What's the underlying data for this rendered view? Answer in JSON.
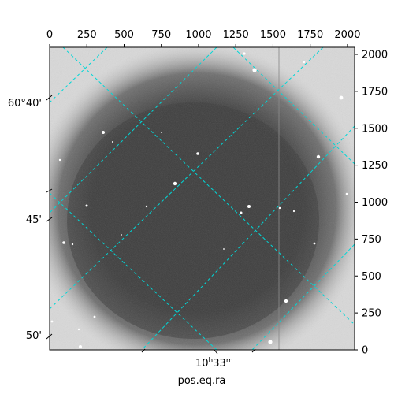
{
  "image_panel": {
    "x_axis_top": {
      "range": [
        0,
        2048
      ],
      "ticks": [
        0,
        250,
        500,
        750,
        1000,
        1250,
        1500,
        1750,
        2000
      ],
      "tick_labels": [
        "0",
        "250",
        "500",
        "750",
        "1000",
        "1250",
        "1500",
        "1750",
        "2000"
      ]
    },
    "y_axis_right": {
      "range": [
        0,
        2048
      ],
      "ticks": [
        0,
        250,
        500,
        750,
        1000,
        1250,
        1500,
        1750,
        2000
      ],
      "tick_labels": [
        "0",
        "250",
        "500",
        "750",
        "1000",
        "1250",
        "1500",
        "1750",
        "2000"
      ]
    },
    "dec_labels": [
      "60°40'",
      "45'",
      "50'"
    ],
    "ra_label": {
      "base": "10",
      "sup_h": "h",
      "mid": "33",
      "sup_m": "m"
    },
    "x_axis_title": "pos.eq.ra",
    "colors": {
      "grid": "#00d7d7",
      "frame": "#000000",
      "background": "#ffffff",
      "sky": "#dcdcdc",
      "halo_dark": "#3a3a3a"
    }
  }
}
